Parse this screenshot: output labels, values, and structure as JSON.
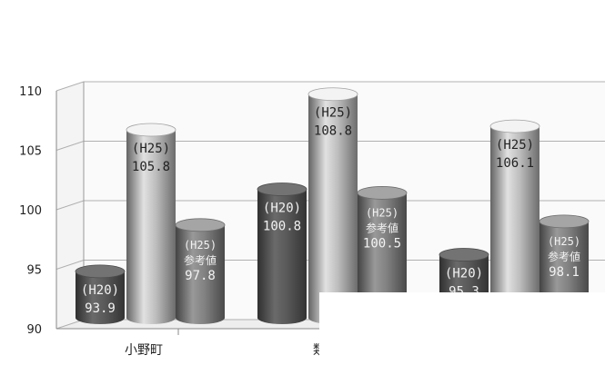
{
  "chart_data": {
    "type": "bar",
    "style": "3d-cylinder",
    "title": "",
    "xlabel": "",
    "ylabel": "",
    "ylim": [
      90,
      110
    ],
    "yticks": [
      90,
      95,
      100,
      105,
      110
    ],
    "grid": true,
    "legend": "none",
    "categories": [
      "小野町",
      "類似",
      ""
    ],
    "category_labels": [
      "小野町",
      "類似",
      ""
    ],
    "series": [
      {
        "values": [
          93.9,
          100.8,
          95.3
        ],
        "labels": [
          [
            "(H20)",
            "93.9"
          ],
          [
            "(H20)",
            "100.8"
          ],
          [
            "(H20)",
            "95.3"
          ]
        ],
        "color": "#555555"
      },
      {
        "values": [
          105.8,
          108.8,
          106.1
        ],
        "labels": [
          [
            "(H25)",
            "105.8"
          ],
          [
            "(H25)",
            "108.8"
          ],
          [
            "(H25)",
            "106.1"
          ]
        ],
        "color": "#b4b4b4"
      },
      {
        "values": [
          97.8,
          100.5,
          98.1
        ],
        "labels": [
          [
            "(H25)",
            "参考値",
            "97.8"
          ],
          [
            "(H25)",
            "参考値",
            "100.5"
          ],
          [
            "(H25)",
            "参考値",
            "98.1"
          ]
        ],
        "color": "#7a7a7a"
      }
    ]
  }
}
